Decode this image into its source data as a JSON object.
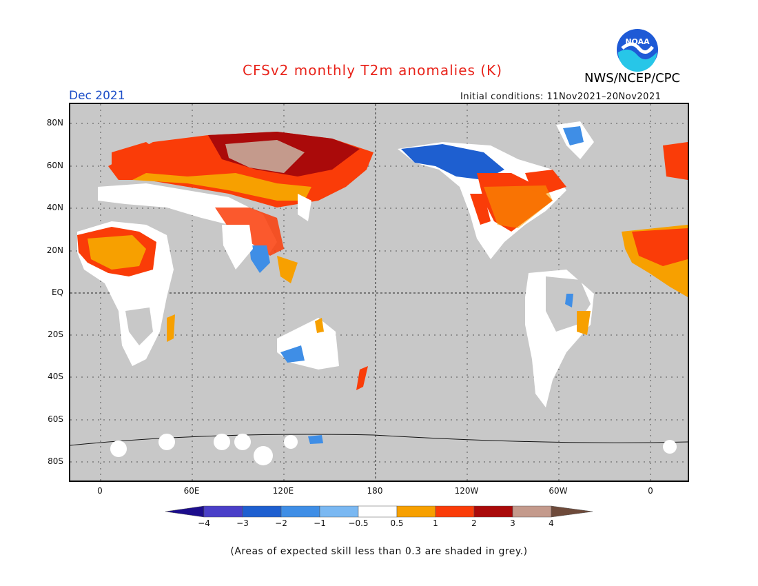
{
  "header": {
    "title": "CFSv2 monthly T2m anomalies (K)",
    "agency": "NWS/NCEP/CPC",
    "period": "Dec 2021",
    "initial_conditions": "Initial conditions: 11Nov2021–20Nov2021",
    "logo_text": "NOAA"
  },
  "map": {
    "lat_labels": [
      "80N",
      "60N",
      "40N",
      "20N",
      "EQ",
      "20S",
      "40S",
      "60S",
      "80S"
    ],
    "lon_labels": [
      "0",
      "60E",
      "120E",
      "180",
      "120W",
      "60W",
      "0"
    ],
    "background_color": "#c8c8c8"
  },
  "colorbar": {
    "labels": [
      "−4",
      "−3",
      "−2",
      "−1",
      "−0.5",
      "0.5",
      "1",
      "2",
      "3",
      "4"
    ],
    "colors": [
      "#1c0d8c",
      "#4a3fc8",
      "#1e5fd0",
      "#3f8ee6",
      "#7ab8f2",
      "#ffffff",
      "#f7a000",
      "#fa3c08",
      "#aa0a0a",
      "#c49a8c",
      "#6e4a3a"
    ]
  },
  "footnote": "(Areas of expected skill less than 0.3 are shaded in grey.)"
}
